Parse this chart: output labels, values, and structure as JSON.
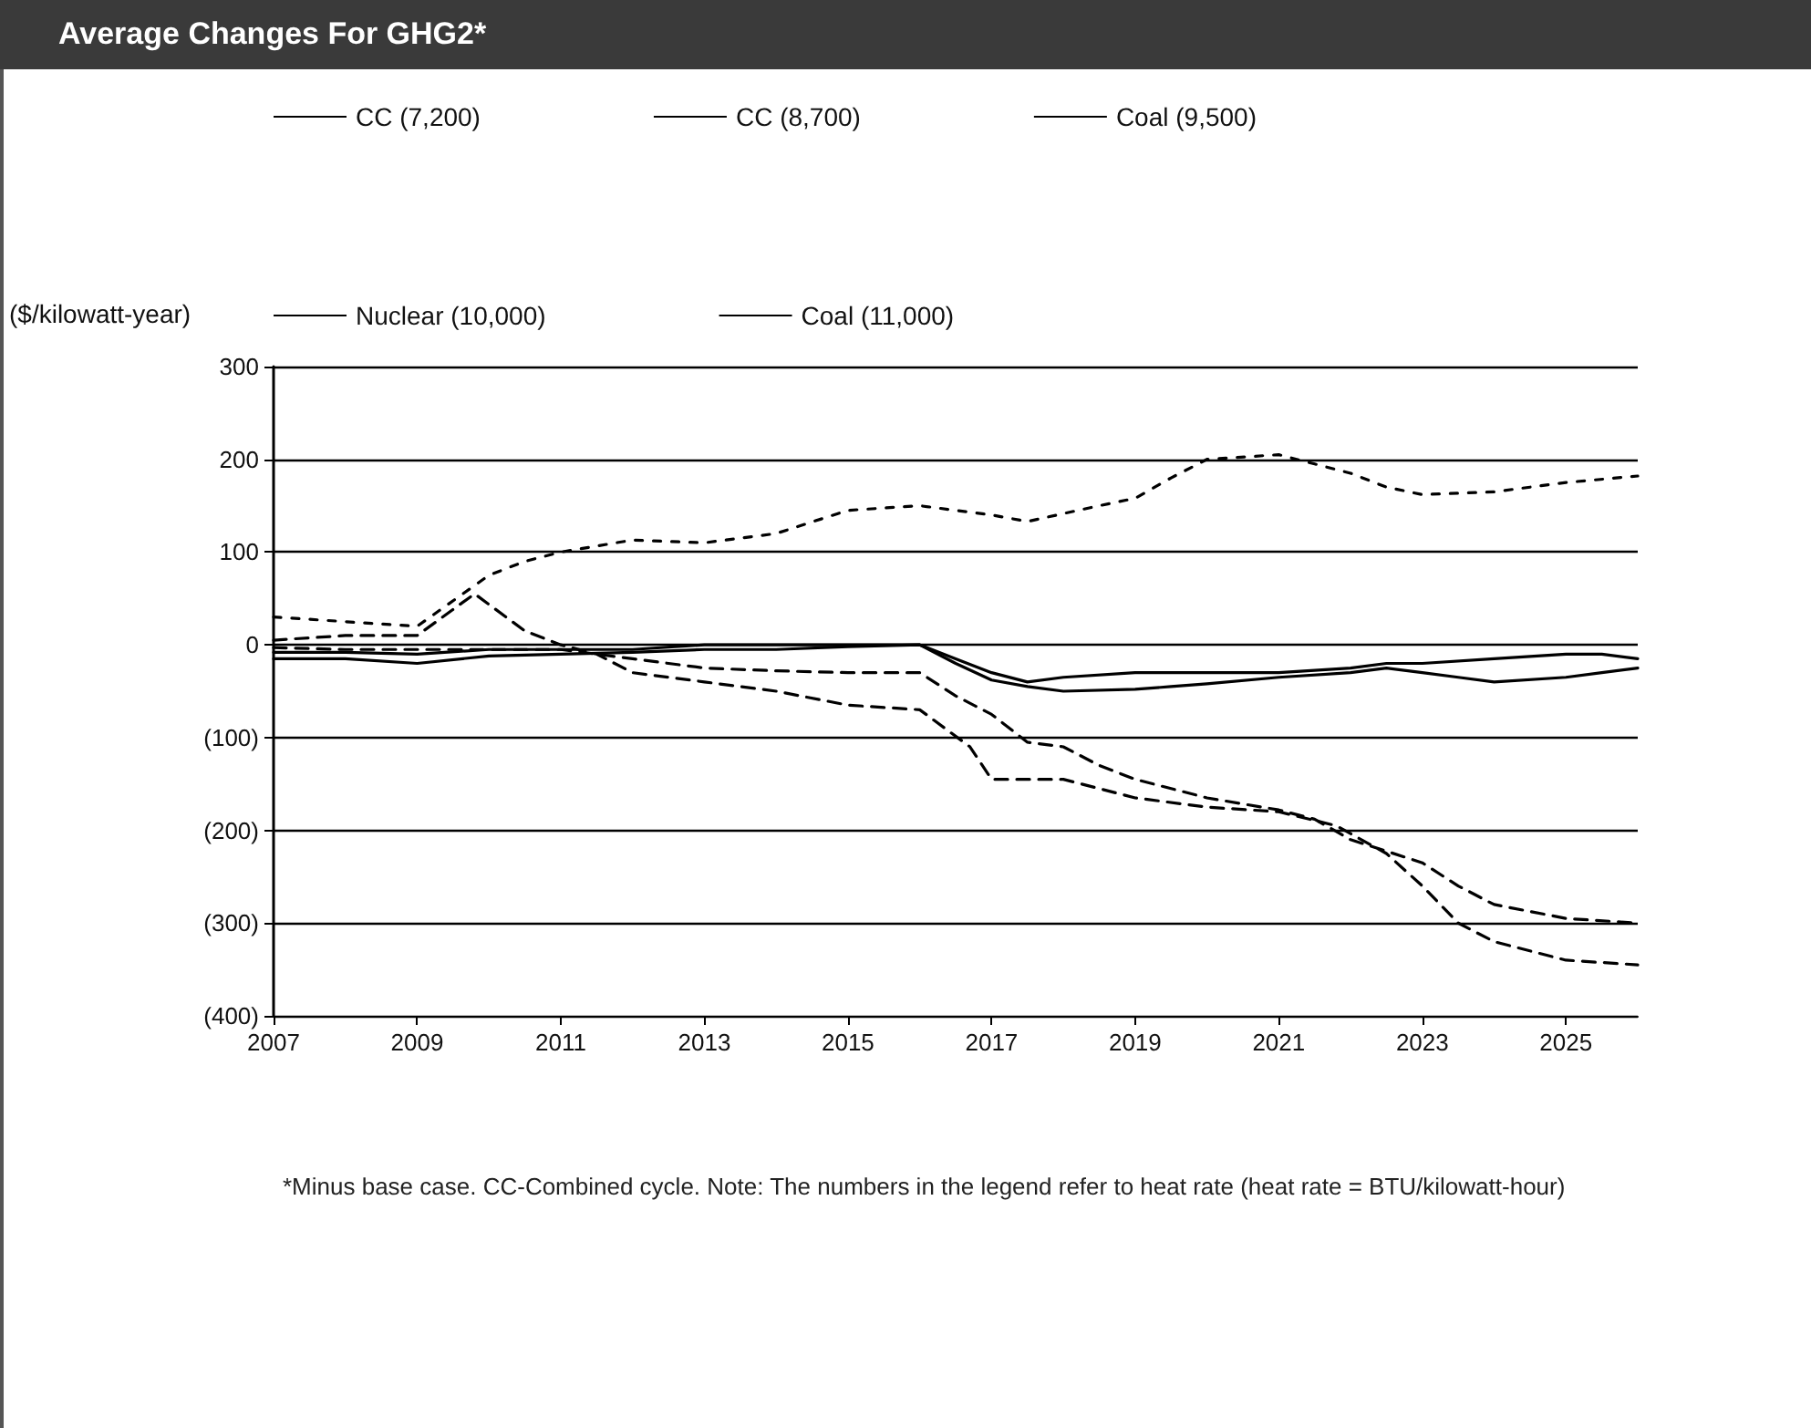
{
  "chart_data": {
    "type": "line",
    "title": "Average Changes For GHG2*",
    "ylabel": "($/kilowatt-year)",
    "annotations": [
      "*Minus base case. CC-Combined cycle. Note: The numbers in the legend refer to heat rate (heat rate = BTU/kilowatt-hour)"
    ],
    "xlim": [
      2007,
      2026
    ],
    "xticks": [
      2007,
      2009,
      2011,
      2013,
      2015,
      2017,
      2019,
      2021,
      2023,
      2025
    ],
    "ylim": [
      -400,
      300
    ],
    "yticks": [
      {
        "value": -400,
        "label": "(400)"
      },
      {
        "value": -300,
        "label": "(300)"
      },
      {
        "value": -200,
        "label": "(200)"
      },
      {
        "value": -100,
        "label": "(100)"
      },
      0,
      100,
      200,
      300
    ],
    "grid": "y",
    "legend": "top",
    "marker": "none",
    "series": [
      {
        "name": "CC (7,200)",
        "color": "#000000",
        "line_style": "solid",
        "x": [
          2007,
          2008,
          2009,
          2010,
          2011,
          2012,
          2013,
          2014,
          2015,
          2016,
          2016.5,
          2017,
          2017.5,
          2018,
          2019,
          2020,
          2021,
          2022,
          2022.5,
          2023,
          2024,
          2025,
          2025.5,
          2026
        ],
        "values": [
          -8,
          -8,
          -10,
          -5,
          -5,
          -5,
          0,
          0,
          0,
          0,
          -15,
          -30,
          -40,
          -35,
          -30,
          -30,
          -30,
          -25,
          -20,
          -20,
          -15,
          -10,
          -10,
          -15
        ]
      },
      {
        "name": "CC (8,700)",
        "color": "#000000",
        "line_style": "solid",
        "x": [
          2007,
          2008,
          2009,
          2010,
          2011,
          2012,
          2013,
          2014,
          2015,
          2016,
          2016.5,
          2017,
          2017.5,
          2018,
          2019,
          2019.5,
          2020,
          2021,
          2022,
          2022.5,
          2023,
          2023.5,
          2024,
          2025,
          2025.5,
          2026
        ],
        "values": [
          -15,
          -15,
          -20,
          -12,
          -10,
          -8,
          -5,
          -5,
          -2,
          0,
          -20,
          -38,
          -45,
          -50,
          -48,
          -45,
          -42,
          -35,
          -30,
          -25,
          -30,
          -35,
          -40,
          -35,
          -30,
          -25
        ]
      },
      {
        "name": "Coal (9,500)",
        "color": "#000000",
        "line_style": "dashed",
        "x": [
          2007,
          2008,
          2009,
          2010,
          2011,
          2012,
          2012.5,
          2013,
          2014,
          2015,
          2016,
          2016.5,
          2017,
          2017.5,
          2018,
          2018.5,
          2019,
          2020,
          2021,
          2021.5,
          2022,
          2023,
          2023.5,
          2024,
          2025,
          2026
        ],
        "values": [
          -3,
          -5,
          -5,
          -5,
          -5,
          -15,
          -20,
          -25,
          -28,
          -30,
          -30,
          -55,
          -75,
          -105,
          -110,
          -130,
          -145,
          -165,
          -178,
          -188,
          -210,
          -235,
          -260,
          -280,
          -295,
          -300
        ]
      },
      {
        "name": "Nuclear (10,000)",
        "color": "#000000",
        "line_style": "dotted",
        "x": [
          2007,
          2008,
          2009,
          2010,
          2010.5,
          2011,
          2012,
          2013,
          2014,
          2015,
          2016,
          2017,
          2017.5,
          2018.5,
          2019,
          2019.5,
          2020,
          2021,
          2021.5,
          2022,
          2022.5,
          2023,
          2024,
          2025,
          2026
        ],
        "values": [
          30,
          25,
          20,
          75,
          90,
          100,
          113,
          110,
          120,
          145,
          150,
          140,
          133,
          150,
          158,
          180,
          200,
          205,
          195,
          185,
          170,
          162,
          165,
          175,
          182
        ]
      },
      {
        "name": "Coal (11,000)",
        "color": "#000000",
        "line_style": "dashed",
        "x": [
          2007,
          2008,
          2009,
          2009.8,
          2010.5,
          2011,
          2011.5,
          2012,
          2013,
          2014,
          2015,
          2016,
          2016.7,
          2017,
          2018,
          2019,
          2020,
          2021,
          2021.8,
          2022.5,
          2023,
          2023.5,
          2024,
          2025,
          2026
        ],
        "values": [
          5,
          10,
          10,
          55,
          15,
          0,
          -10,
          -30,
          -40,
          -50,
          -65,
          -70,
          -110,
          -145,
          -145,
          -165,
          -175,
          -180,
          -195,
          -225,
          -260,
          -300,
          -320,
          -340,
          -345
        ]
      }
    ]
  }
}
